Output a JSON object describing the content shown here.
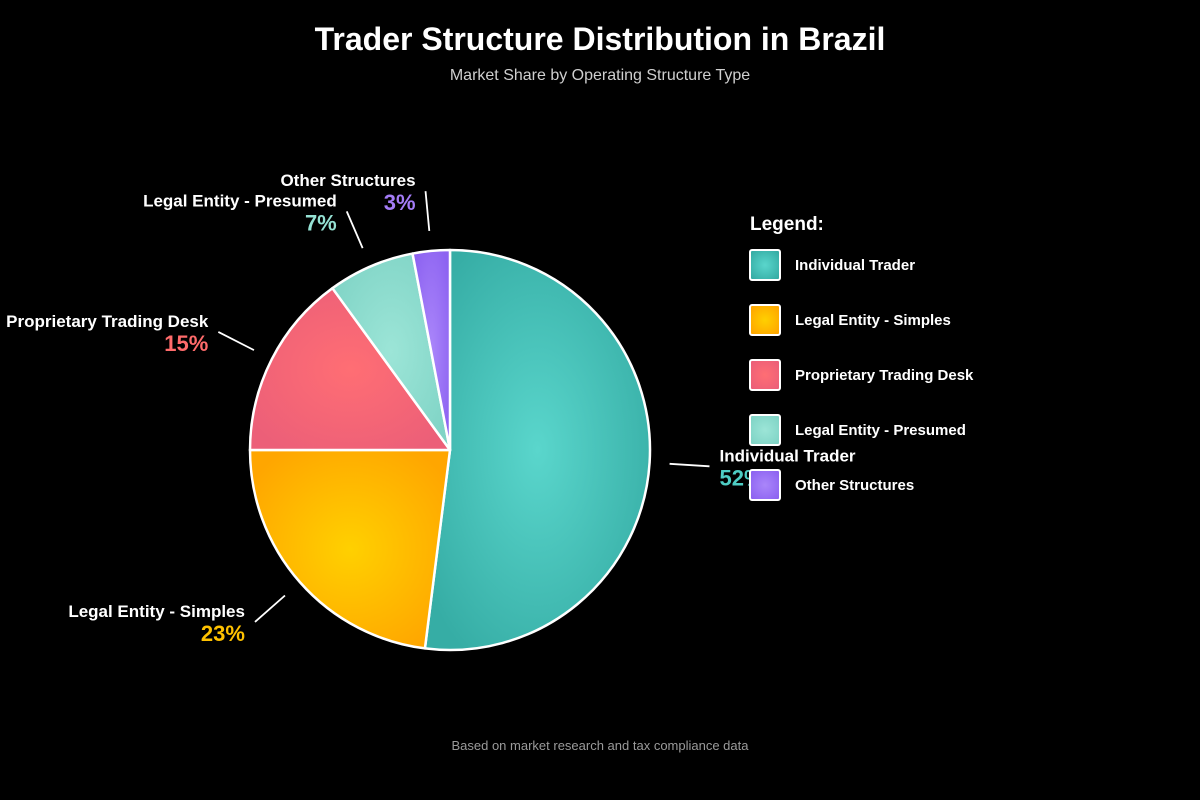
{
  "chart_data": {
    "type": "pie",
    "title": "Trader Structure Distribution in Brazil",
    "subtitle": "Market Share by Operating Structure Type",
    "categories": [
      "Individual Trader",
      "Legal Entity - Simples",
      "Proprietary Trading Desk",
      "Legal Entity - Presumed",
      "Other Structures"
    ],
    "values": [
      52,
      23,
      15,
      7,
      3
    ],
    "value_labels": [
      "52%",
      "23%",
      "15%",
      "7%",
      "3%"
    ],
    "colors": [
      "#4ECDC4",
      "#FFC200",
      "#FF6B6B",
      "#95E1D3",
      "#A47CF7"
    ],
    "legend_title": "Legend:",
    "legend_position": "right",
    "footnote": "Based on market research and tax compliance data"
  }
}
